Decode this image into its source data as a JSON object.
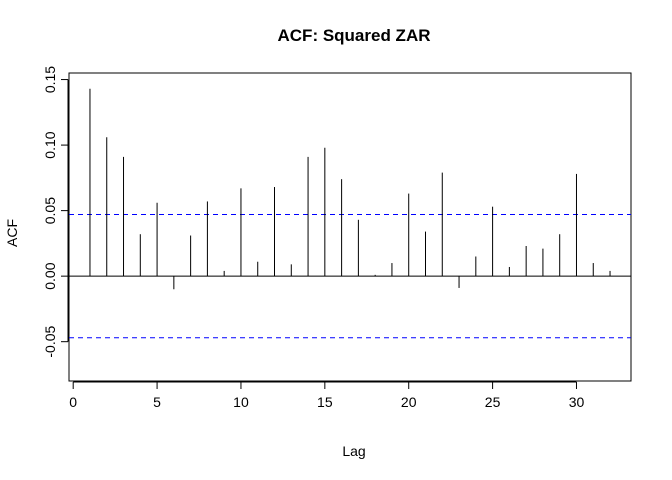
{
  "chart_data": {
    "type": "bar",
    "title": "ACF: Squared ZAR",
    "xlabel": "Lag",
    "ylabel": "ACF",
    "xlim": [
      -0.25,
      33.25
    ],
    "ylim": [
      -0.08,
      0.155
    ],
    "xticks": [
      0,
      5,
      10,
      15,
      20,
      25,
      30
    ],
    "xtick_labels": [
      "0",
      "5",
      "10",
      "15",
      "20",
      "25",
      "30"
    ],
    "yticks": [
      -0.05,
      0,
      0.05,
      0.1,
      0.15
    ],
    "ytick_labels": [
      "-0.05",
      "0.00",
      "0.05",
      "0.10",
      "0.15"
    ],
    "lags": [
      1,
      2,
      3,
      4,
      5,
      6,
      7,
      8,
      9,
      10,
      11,
      12,
      13,
      14,
      15,
      16,
      17,
      18,
      19,
      20,
      21,
      22,
      23,
      24,
      25,
      26,
      27,
      28,
      29,
      30,
      31,
      32
    ],
    "values": [
      0.143,
      0.106,
      0.091,
      0.032,
      0.056,
      -0.01,
      0.031,
      0.057,
      0.004,
      0.067,
      0.011,
      0.068,
      0.009,
      0.091,
      0.098,
      0.074,
      0.043,
      0.001,
      0.01,
      0.063,
      0.034,
      0.079,
      -0.009,
      0.015,
      0.053,
      0.007,
      0.023,
      0.021,
      0.032,
      0.078,
      0.01,
      0.004
    ],
    "confidence_band": 0.047,
    "colors": {
      "bars": "#000000",
      "band": "#0000ff",
      "frame": "#000000"
    },
    "grid": false
  }
}
